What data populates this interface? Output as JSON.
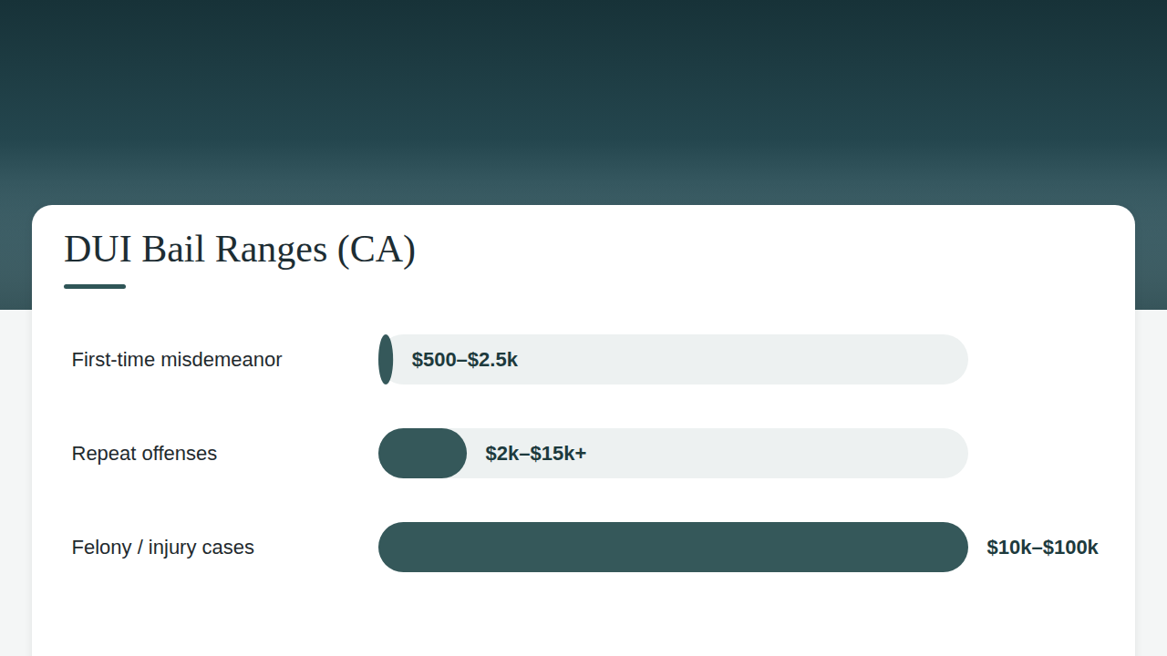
{
  "chart_data": {
    "type": "bar",
    "title": "DUI Bail Ranges (CA)",
    "orientation": "horizontal",
    "categories": [
      "First-time misdemeanor",
      "Repeat offenses",
      "Felony / injury cases"
    ],
    "values": [
      2500,
      15000,
      100000
    ],
    "value_labels": [
      "$500–$2.5k",
      "$2k–$15k+",
      "$10k–$100k"
    ],
    "data_labels": true,
    "color": "#35585a",
    "xlim": [
      0,
      100000
    ],
    "tick_labels": false,
    "grid": false
  }
}
